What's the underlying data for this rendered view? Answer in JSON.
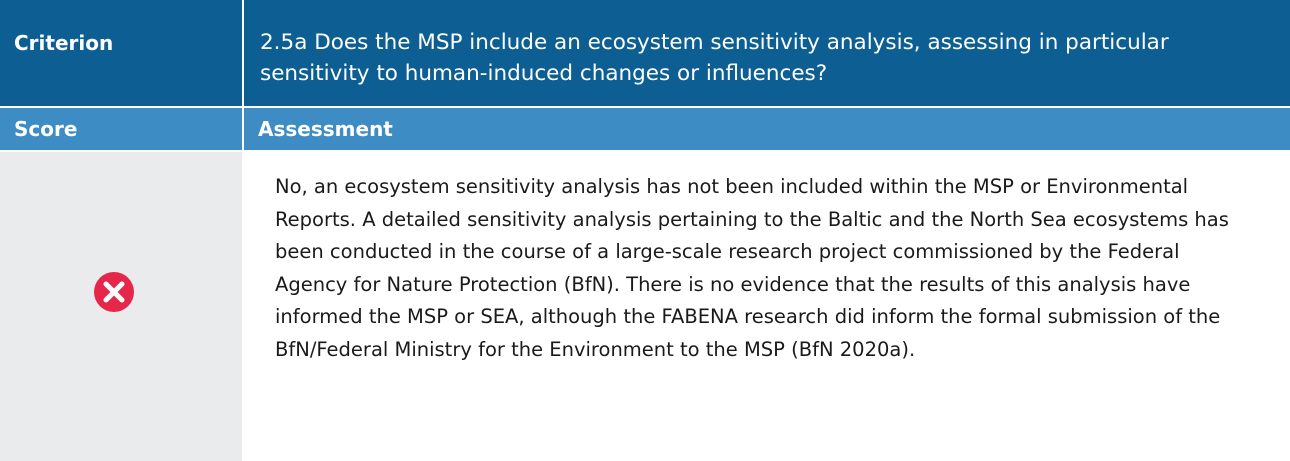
{
  "table": {
    "header": [
      "Criterion",
      "2.5a Does the MSP include an ecosystem sensitivity analysis, assessing in particular sensitivity to human-induced changes or influences?"
    ],
    "subheader": [
      "Score",
      "Assessment"
    ],
    "assessment": "No, an ecosystem sensitivity analysis has not been included within the MSP or Environmental Reports. A detailed sensitivity analysis pertaining to the Baltic and the North Sea ecosystems has been conducted in the course of a large-scale research project commissioned by the Federal Agency for Nature Protection (BfN). There is no evidence that the results of this analysis have informed the MSP or SEA, although the FABENA research did inform the formal submission of the BfN/Federal Ministry for the Environment to the MSP (BfN 2020a)."
  }
}
